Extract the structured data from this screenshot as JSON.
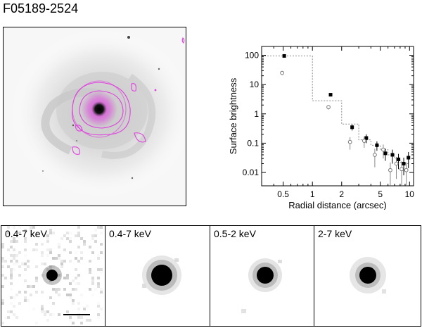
{
  "figure": {
    "title": "F05189-2524"
  },
  "bands": [
    {
      "label": "0.4-7 keV"
    },
    {
      "label": "0.4-7 keV"
    },
    {
      "label": "0.5-2 keV"
    },
    {
      "label": "2-7 keV"
    }
  ],
  "colors": {
    "contour": "#e040e0",
    "axis": "#000000",
    "model": "#888888"
  },
  "chart_data": {
    "type": "scatter",
    "xlabel": "Radial distance (arcsec)",
    "ylabel": "Surface brightness",
    "xscale": "log",
    "yscale": "log",
    "xlim": [
      0.3,
      11
    ],
    "ylim": [
      0.0035,
      200
    ],
    "xticks": [
      "0.5",
      "1",
      "2",
      "5",
      "10"
    ],
    "yticks": [
      "100",
      "10",
      "1",
      "0.1",
      "0.01"
    ],
    "series": [
      {
        "marker": "filled-square",
        "x": [
          0.5,
          1.5,
          2.5,
          3.5,
          4.5,
          5.5,
          6.5,
          7.5,
          8.5,
          9.5
        ],
        "y": [
          95,
          4.5,
          0.35,
          0.15,
          0.085,
          0.045,
          0.04,
          0.028,
          0.02,
          0.032
        ],
        "yerr": [
          8,
          0.5,
          0.08,
          0.05,
          0.03,
          0.02,
          0.02,
          0.015,
          0.012,
          0.018
        ]
      },
      {
        "marker": "open-circle",
        "x": [
          0.5,
          1.5,
          2.5,
          3.5,
          4.5,
          5.5,
          6.5,
          7.5,
          8.5,
          9.5
        ],
        "y": [
          25,
          1.7,
          0.11,
          0.12,
          0.04,
          0.06,
          0.012,
          0.02,
          0.013,
          0.012
        ],
        "yerr": [
          4,
          0.3,
          0.05,
          0.05,
          0.025,
          0.03,
          0.01,
          0.014,
          0.011,
          0.01
        ]
      }
    ],
    "model_steps": [
      {
        "x0": 0.3,
        "x1": 1.0,
        "y": 95
      },
      {
        "x0": 1.0,
        "x1": 2.0,
        "y": 2.8
      },
      {
        "x0": 2.0,
        "x1": 3.0,
        "y": 0.45
      },
      {
        "x0": 3.0,
        "x1": 4.0,
        "y": 0.13
      },
      {
        "x0": 4.0,
        "x1": 5.0,
        "y": 0.085
      },
      {
        "x0": 5.0,
        "x1": 6.0,
        "y": 0.06
      },
      {
        "x0": 6.0,
        "x1": 7.0,
        "y": 0.04
      },
      {
        "x0": 7.0,
        "x1": 8.0,
        "y": 0.03
      },
      {
        "x0": 8.0,
        "x1": 9.0,
        "y": 0.022
      },
      {
        "x0": 9.0,
        "x1": 10.0,
        "y": 0.02
      }
    ]
  }
}
